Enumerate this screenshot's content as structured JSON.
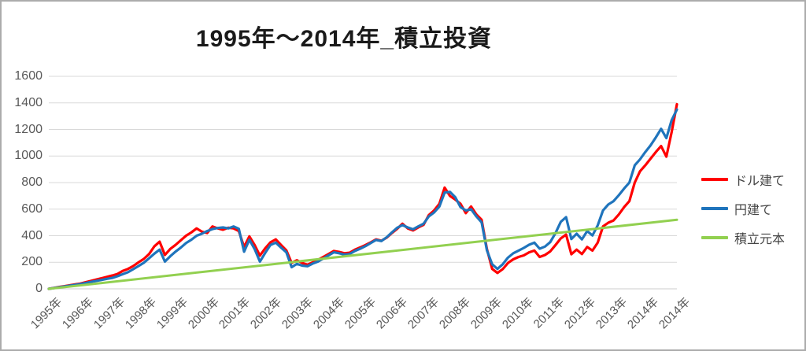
{
  "title": "1995年〜2014年_積立投資",
  "colors": {
    "grid": "#D9D9D9",
    "axis_line": "#CDCDCD",
    "axis_text": "#595959",
    "title_text": "#1A1A1A",
    "legend_text": "#454545",
    "frame_border": "#ACACAC",
    "series_dollar": "#FF0000",
    "series_yen": "#1F74BC",
    "series_principal": "#92D050"
  },
  "chart_data": {
    "type": "line",
    "title": "1995年〜2014年_積立投資",
    "xlabel": "",
    "ylabel": "",
    "ylim": [
      0,
      1600
    ],
    "ytick_interval": 200,
    "yticks": [
      "0",
      "200",
      "400",
      "600",
      "800",
      "1000",
      "1200",
      "1400",
      "1600"
    ],
    "grid": "horizontal-only",
    "legend_position": "right",
    "x_unit": "year (monthly data, 1995–2014)",
    "categories": [
      "1995年",
      "1996年",
      "1997年",
      "1998年",
      "1999年",
      "2000年",
      "2001年",
      "2002年",
      "2003年",
      "2004年",
      "2005年",
      "2006年",
      "2007年",
      "2008年",
      "2009年",
      "2010年",
      "2011年",
      "2012年",
      "2013年",
      "2014年",
      "2014年"
    ],
    "series": [
      {
        "name": "ドル建て",
        "color": "#FF0000",
        "values": [
          0,
          7,
          14,
          20,
          27,
          34,
          40,
          50,
          60,
          70,
          80,
          90,
          100,
          112,
          135,
          150,
          172,
          200,
          225,
          262,
          320,
          355,
          255,
          300,
          330,
          365,
          400,
          425,
          455,
          430,
          420,
          470,
          455,
          445,
          460,
          455,
          435,
          315,
          395,
          330,
          250,
          305,
          350,
          372,
          330,
          290,
          195,
          215,
          195,
          182,
          200,
          218,
          240,
          262,
          285,
          278,
          268,
          272,
          295,
          312,
          330,
          350,
          372,
          362,
          385,
          420,
          452,
          490,
          455,
          440,
          462,
          482,
          555,
          590,
          640,
          762,
          700,
          672,
          640,
          570,
          620,
          560,
          520,
          300,
          150,
          120,
          148,
          195,
          222,
          240,
          252,
          275,
          288,
          240,
          255,
          282,
          330,
          380,
          408,
          260,
          295,
          262,
          315,
          288,
          348,
          470,
          498,
          515,
          560,
          615,
          660,
          800,
          885,
          930,
          980,
          1030,
          1075,
          995,
          1180,
          1390
        ]
      },
      {
        "name": "円建て",
        "color": "#1F74BC",
        "values": [
          0,
          6,
          12,
          18,
          24,
          30,
          36,
          44,
          52,
          60,
          67,
          75,
          82,
          95,
          110,
          125,
          148,
          172,
          196,
          230,
          265,
          295,
          205,
          245,
          280,
          310,
          345,
          370,
          400,
          415,
          435,
          450,
          458,
          462,
          455,
          470,
          452,
          280,
          370,
          300,
          205,
          270,
          330,
          348,
          310,
          275,
          163,
          188,
          175,
          170,
          190,
          205,
          228,
          252,
          275,
          268,
          258,
          262,
          285,
          302,
          322,
          345,
          368,
          360,
          388,
          425,
          460,
          480,
          462,
          448,
          470,
          490,
          545,
          575,
          620,
          725,
          730,
          690,
          615,
          590,
          600,
          545,
          500,
          290,
          185,
          150,
          185,
          235,
          268,
          288,
          308,
          332,
          348,
          302,
          318,
          352,
          420,
          505,
          540,
          375,
          415,
          372,
          435,
          402,
          478,
          590,
          635,
          660,
          705,
          755,
          800,
          930,
          975,
          1030,
          1080,
          1140,
          1205,
          1135,
          1270,
          1350
        ]
      },
      {
        "name": "積立元本",
        "color": "#92D050",
        "values": [
          0,
          520
        ]
      }
    ]
  }
}
